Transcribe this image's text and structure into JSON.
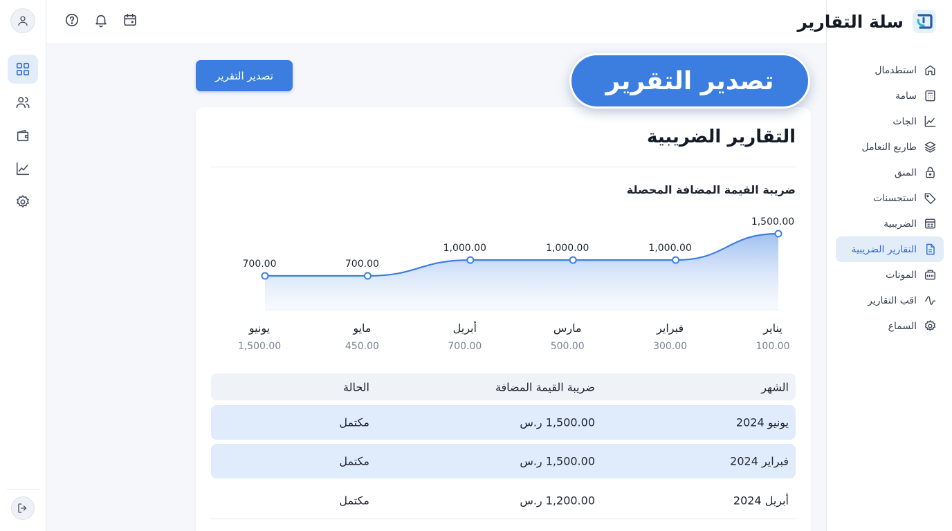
{
  "brand": {
    "name": "سلة التقارير"
  },
  "sidebar": {
    "items": [
      {
        "label": "استطدمال",
        "icon": "home-icon",
        "active": false
      },
      {
        "label": "سامة",
        "icon": "calculator-icon",
        "active": false
      },
      {
        "label": "الجاث",
        "icon": "chart-line-icon",
        "active": false
      },
      {
        "label": "طاريع النعامل",
        "icon": "layers-icon",
        "active": false
      },
      {
        "label": "المنق",
        "icon": "lock-icon",
        "active": false
      },
      {
        "label": "استحسنات",
        "icon": "tag-icon",
        "active": false
      },
      {
        "label": "الضريبية",
        "icon": "receipt-icon",
        "active": false
      },
      {
        "label": "التقارير الضريبية",
        "icon": "file-report-icon",
        "active": true
      },
      {
        "label": "المونات",
        "icon": "inventory-icon",
        "active": false
      },
      {
        "label": "اقب التقارير",
        "icon": "activity-icon",
        "active": false
      },
      {
        "label": "السماع",
        "icon": "gear-icon",
        "active": false
      }
    ]
  },
  "topbar": {
    "icons": [
      "help-icon",
      "bell-icon",
      "calendar-icon"
    ]
  },
  "rail": {
    "icons": [
      "dashboard-icon",
      "users-icon",
      "wallet-icon",
      "trend-icon",
      "settings-icon"
    ],
    "active_index": 0,
    "logout_icon": "logout-icon",
    "avatar_icon": "user-icon"
  },
  "actions": {
    "export_small_label": "تصدير التقرير",
    "export_big_label": "تصدير التقرير"
  },
  "colors": {
    "accent": "#3b7ee0",
    "active_bg": "#e3ecf9",
    "row_highlight": "#e0ebfb"
  },
  "main": {
    "title": "التقارير الضريبية",
    "chart_title": "ضريبة القيمة المضافة المحصلة"
  },
  "chart_data": {
    "type": "area",
    "title": "ضريبة القيمة المضافة المحصلة",
    "categories": [
      "يناير",
      "فبراير",
      "مارس",
      "أبريل",
      "مايو",
      "يونيو"
    ],
    "sublabels": [
      "100.00",
      "300.00",
      "500.00",
      "700.00",
      "450.00",
      "1,500.00"
    ],
    "series": [
      {
        "values": [
          1500,
          1000,
          1000,
          1000,
          700,
          700
        ],
        "point_labels": [
          "1,500.00",
          "1,000.00",
          "1,000.00",
          "1,000.00",
          "700.00",
          "700.00"
        ]
      }
    ],
    "ylim": [
      0,
      1500
    ],
    "grid": false,
    "legend": "none"
  },
  "table": {
    "headers": {
      "month": "الشهر",
      "vat": "ضريبة القيمة المضافة",
      "status": "الحالة"
    },
    "rows": [
      {
        "month": "يونيو 2024",
        "vat": "1,500.00 ر.س",
        "status": "مكتمل",
        "highlight": true
      },
      {
        "month": "فبراير 2024",
        "vat": "1,500.00 ر.س",
        "status": "مكتمل",
        "highlight": true
      },
      {
        "month": "أبريل 2024",
        "vat": "1,200.00 ر.س",
        "status": "مكتمل",
        "highlight": false
      }
    ]
  }
}
